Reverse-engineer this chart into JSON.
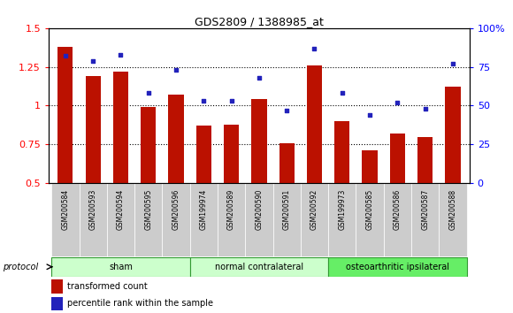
{
  "title": "GDS2809 / 1388985_at",
  "samples": [
    "GSM200584",
    "GSM200593",
    "GSM200594",
    "GSM200595",
    "GSM200596",
    "GSM199974",
    "GSM200589",
    "GSM200590",
    "GSM200591",
    "GSM200592",
    "GSM199973",
    "GSM200585",
    "GSM200586",
    "GSM200587",
    "GSM200588"
  ],
  "red_values": [
    1.38,
    1.19,
    1.22,
    0.99,
    1.07,
    0.87,
    0.88,
    1.04,
    0.76,
    1.26,
    0.9,
    0.71,
    0.82,
    0.8,
    1.12
  ],
  "blue_pct": [
    82,
    79,
    83,
    58,
    73,
    53,
    53,
    68,
    47,
    87,
    58,
    44,
    52,
    48,
    77
  ],
  "groups": [
    {
      "label": "sham",
      "start": 0,
      "end": 4,
      "color": "#ccffcc"
    },
    {
      "label": "normal contralateral",
      "start": 5,
      "end": 9,
      "color": "#ccffcc"
    },
    {
      "label": "osteoarthritic ipsilateral",
      "start": 10,
      "end": 14,
      "color": "#66ee66"
    }
  ],
  "ylim_left": [
    0.5,
    1.5
  ],
  "ylim_right": [
    0,
    100
  ],
  "yticks_left": [
    0.5,
    0.75,
    1.0,
    1.25,
    1.5
  ],
  "yticks_right": [
    0,
    25,
    50,
    75,
    100
  ],
  "ytick_labels_left": [
    "0.5",
    "0.75",
    "1",
    "1.25",
    "1.5"
  ],
  "ytick_labels_right": [
    "0",
    "25",
    "50",
    "75",
    "100%"
  ],
  "bar_color": "#bb1100",
  "dot_color": "#2222bb",
  "bar_width": 0.55,
  "legend_red": "transformed count",
  "legend_blue": "percentile rank within the sample",
  "protocol_label": "protocol"
}
